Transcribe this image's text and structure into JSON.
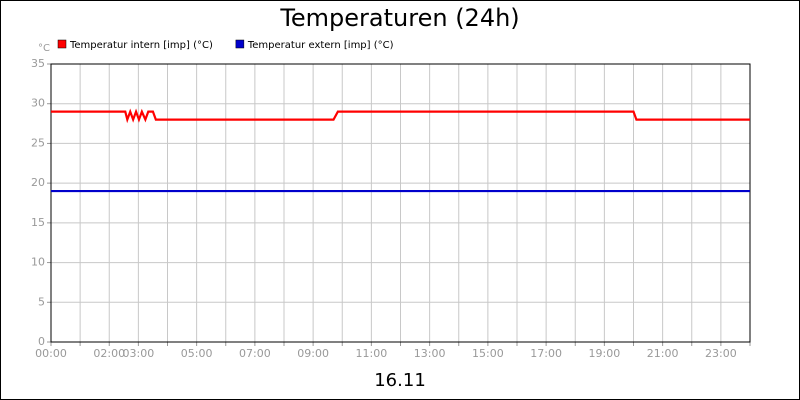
{
  "chart_data": {
    "type": "line",
    "title": "Temperaturen (24h)",
    "y_unit": "°C",
    "x_caption": "16.11",
    "xlim": [
      0,
      24
    ],
    "ylim": [
      0,
      35
    ],
    "yticks": [
      0,
      5,
      10,
      15,
      20,
      25,
      30,
      35
    ],
    "xticks": [
      {
        "value": 0,
        "label": "00:00"
      },
      {
        "value": 1,
        "label": null
      },
      {
        "value": 2,
        "label": "02:00"
      },
      {
        "value": 3,
        "label": "03:00"
      },
      {
        "value": 4,
        "label": null
      },
      {
        "value": 5,
        "label": "05:00"
      },
      {
        "value": 6,
        "label": null
      },
      {
        "value": 7,
        "label": "07:00"
      },
      {
        "value": 8,
        "label": null
      },
      {
        "value": 9,
        "label": "09:00"
      },
      {
        "value": 10,
        "label": null
      },
      {
        "value": 11,
        "label": "11:00"
      },
      {
        "value": 12,
        "label": null
      },
      {
        "value": 13,
        "label": "13:00"
      },
      {
        "value": 14,
        "label": null
      },
      {
        "value": 15,
        "label": "15:00"
      },
      {
        "value": 16,
        "label": null
      },
      {
        "value": 17,
        "label": "17:00"
      },
      {
        "value": 18,
        "label": null
      },
      {
        "value": 19,
        "label": "19:00"
      },
      {
        "value": 20,
        "label": null
      },
      {
        "value": 21,
        "label": "21:00"
      },
      {
        "value": 22,
        "label": null
      },
      {
        "value": 23,
        "label": "23:00"
      },
      {
        "value": 24,
        "label": null
      }
    ],
    "grid": true,
    "series": [
      {
        "name": "Temperatur intern [imp] (°C)",
        "color": "#ff0000",
        "x": [
          0,
          2.55,
          2.62,
          2.72,
          2.82,
          2.92,
          3.02,
          3.12,
          3.24,
          3.34,
          3.5,
          3.6,
          9.7,
          9.85,
          20.0,
          20.1,
          24
        ],
        "values": [
          29,
          29,
          28,
          29,
          28,
          29,
          28,
          29,
          28,
          29,
          29,
          28,
          28,
          29,
          29,
          28,
          28
        ]
      },
      {
        "name": "Temperatur extern [imp] (°C)",
        "color": "#0000cc",
        "x": [
          0,
          24
        ],
        "values": [
          19,
          19
        ]
      }
    ]
  }
}
